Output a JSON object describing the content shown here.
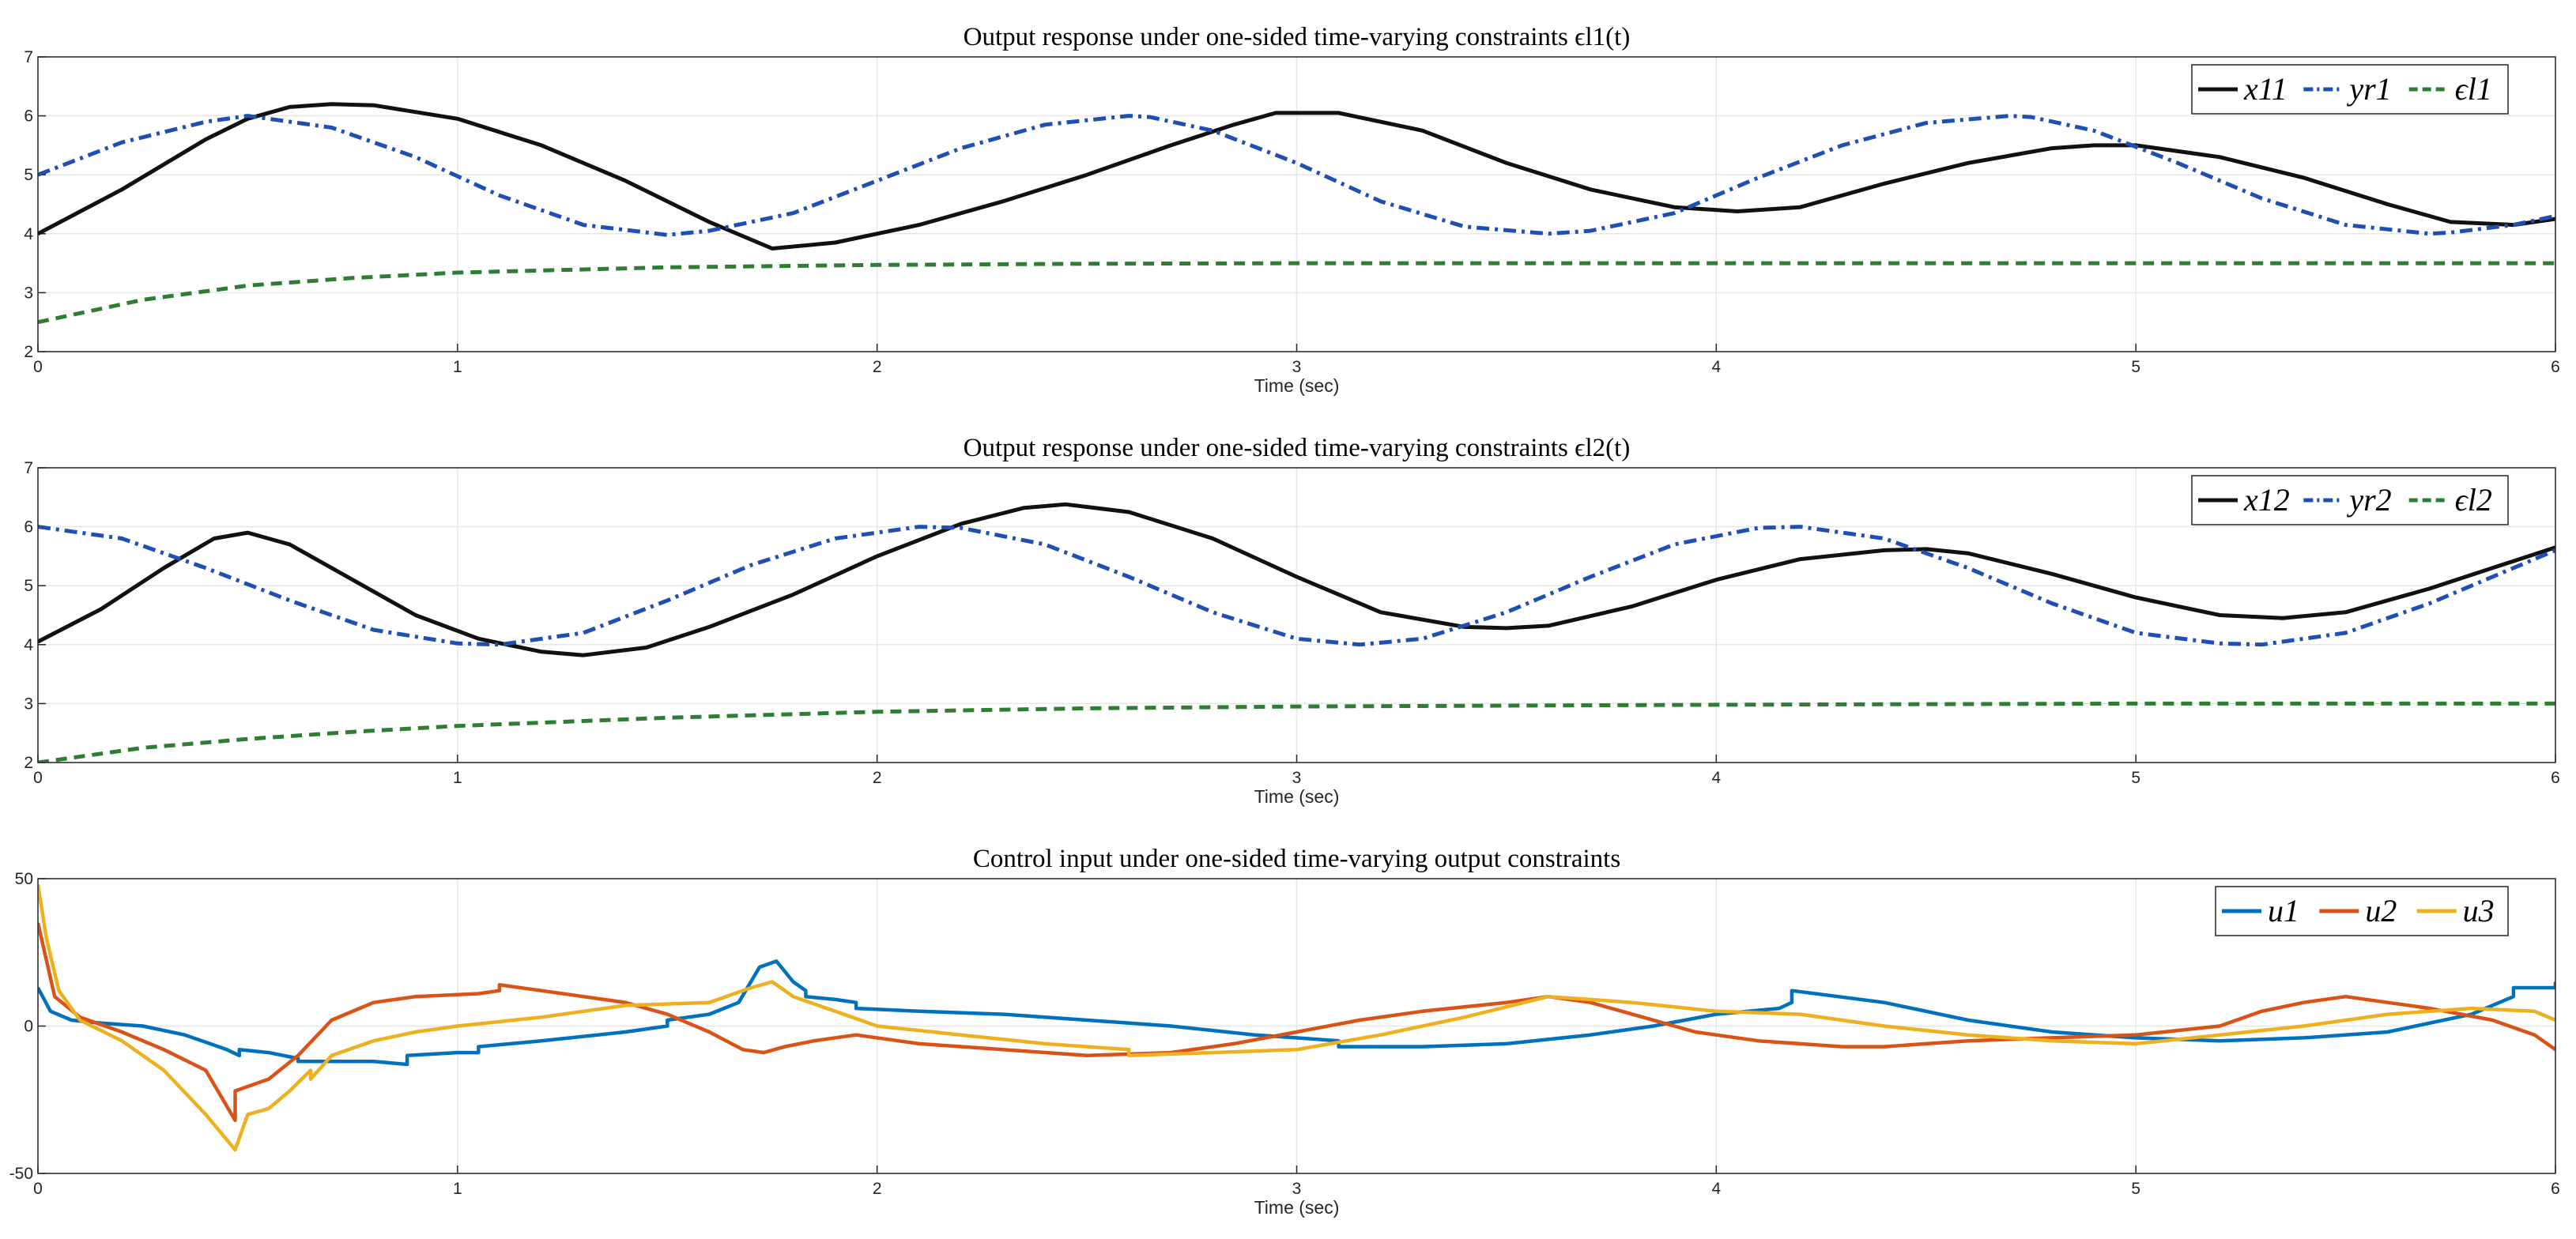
{
  "chart_data": [
    {
      "type": "line",
      "title": "Output response under one-sided time-varying constraints ϵl1(t)",
      "xlabel": "Time (sec)",
      "ylabel": "",
      "xlim": [
        0,
        6
      ],
      "ylim": [
        2,
        7
      ],
      "xticks": [
        "0",
        "1",
        "2",
        "3",
        "4",
        "5",
        "6"
      ],
      "yticks": [
        "2",
        "3",
        "4",
        "5",
        "6",
        "7"
      ],
      "grid": true,
      "legend_position": "top-right",
      "series": [
        {
          "name": "x11",
          "color": "#111111",
          "style": "solid",
          "x": [
            0,
            0.2,
            0.4,
            0.5,
            0.6,
            0.7,
            0.8,
            1.0,
            1.2,
            1.4,
            1.6,
            1.75,
            1.9,
            2.1,
            2.3,
            2.5,
            2.7,
            2.85,
            2.95,
            3.1,
            3.3,
            3.5,
            3.7,
            3.9,
            4.05,
            4.2,
            4.4,
            4.6,
            4.8,
            4.9,
            5.0,
            5.2,
            5.4,
            5.6,
            5.75,
            5.9,
            6.0
          ],
          "y": [
            4.0,
            4.75,
            5.6,
            5.95,
            6.15,
            6.2,
            6.18,
            5.95,
            5.5,
            4.9,
            4.2,
            3.75,
            3.85,
            4.15,
            4.55,
            5.0,
            5.5,
            5.85,
            6.05,
            6.05,
            5.75,
            5.2,
            4.75,
            4.45,
            4.38,
            4.45,
            4.85,
            5.2,
            5.45,
            5.5,
            5.5,
            5.3,
            4.95,
            4.5,
            4.2,
            4.15,
            4.25
          ]
        },
        {
          "name": "yr1",
          "color": "#1f4fb4",
          "style": "dashdot",
          "x": [
            0,
            0.2,
            0.4,
            0.5,
            0.7,
            0.9,
            1.1,
            1.3,
            1.5,
            1.6,
            1.8,
            2.0,
            2.2,
            2.4,
            2.6,
            2.65,
            2.8,
            3.0,
            3.2,
            3.4,
            3.6,
            3.7,
            3.9,
            4.1,
            4.3,
            4.5,
            4.7,
            4.75,
            4.9,
            5.1,
            5.3,
            5.5,
            5.7,
            5.75,
            5.9,
            6.0
          ],
          "y": [
            5.0,
            5.55,
            5.9,
            6.0,
            5.8,
            5.3,
            4.65,
            4.15,
            3.98,
            4.05,
            4.35,
            4.9,
            5.45,
            5.85,
            6.0,
            5.98,
            5.75,
            5.2,
            4.55,
            4.12,
            4.0,
            4.05,
            4.35,
            4.95,
            5.5,
            5.88,
            6.0,
            5.98,
            5.75,
            5.2,
            4.6,
            4.15,
            4.0,
            4.02,
            4.15,
            4.3
          ]
        },
        {
          "name": "ϵl1",
          "color": "#2e7d32",
          "style": "dashed",
          "x": [
            0,
            0.25,
            0.5,
            0.75,
            1.0,
            1.5,
            2.0,
            2.5,
            3.0,
            4.0,
            5.0,
            6.0
          ],
          "y": [
            2.5,
            2.88,
            3.12,
            3.25,
            3.34,
            3.43,
            3.47,
            3.49,
            3.5,
            3.5,
            3.5,
            3.5
          ]
        }
      ]
    },
    {
      "type": "line",
      "title": "Output response under one-sided time-varying constraints ϵl2(t)",
      "xlabel": "Time (sec)",
      "ylabel": "",
      "xlim": [
        0,
        6
      ],
      "ylim": [
        2,
        7
      ],
      "xticks": [
        "0",
        "1",
        "2",
        "3",
        "4",
        "5",
        "6"
      ],
      "yticks": [
        "2",
        "3",
        "4",
        "5",
        "6",
        "7"
      ],
      "grid": true,
      "legend_position": "top-right",
      "series": [
        {
          "name": "x12",
          "color": "#111111",
          "style": "solid",
          "x": [
            0,
            0.15,
            0.3,
            0.42,
            0.5,
            0.6,
            0.75,
            0.9,
            1.05,
            1.2,
            1.3,
            1.45,
            1.6,
            1.8,
            2.0,
            2.2,
            2.35,
            2.45,
            2.6,
            2.8,
            3.0,
            3.2,
            3.4,
            3.5,
            3.6,
            3.8,
            4.0,
            4.2,
            4.4,
            4.5,
            4.6,
            4.8,
            5.0,
            5.2,
            5.35,
            5.5,
            5.7,
            5.85,
            6.0
          ],
          "y": [
            4.05,
            4.6,
            5.3,
            5.8,
            5.9,
            5.7,
            5.1,
            4.5,
            4.1,
            3.88,
            3.82,
            3.95,
            4.3,
            4.85,
            5.5,
            6.05,
            6.32,
            6.38,
            6.25,
            5.8,
            5.15,
            4.55,
            4.3,
            4.28,
            4.32,
            4.65,
            5.1,
            5.45,
            5.6,
            5.62,
            5.55,
            5.2,
            4.8,
            4.5,
            4.45,
            4.55,
            4.95,
            5.3,
            5.65
          ]
        },
        {
          "name": "yr2",
          "color": "#1f4fb4",
          "style": "dashdot",
          "x": [
            0,
            0.2,
            0.4,
            0.6,
            0.8,
            1.0,
            1.1,
            1.3,
            1.5,
            1.7,
            1.9,
            2.1,
            2.2,
            2.4,
            2.6,
            2.8,
            3.0,
            3.15,
            3.3,
            3.5,
            3.7,
            3.9,
            4.1,
            4.2,
            4.4,
            4.6,
            4.8,
            5.0,
            5.2,
            5.3,
            5.5,
            5.7,
            5.9,
            6.0
          ],
          "y": [
            6.0,
            5.8,
            5.3,
            4.75,
            4.25,
            4.02,
            4.0,
            4.2,
            4.75,
            5.35,
            5.8,
            6.0,
            5.98,
            5.7,
            5.15,
            4.55,
            4.1,
            4.0,
            4.1,
            4.55,
            5.15,
            5.7,
            5.98,
            6.0,
            5.8,
            5.3,
            4.7,
            4.2,
            4.02,
            4.0,
            4.2,
            4.7,
            5.3,
            5.6
          ]
        },
        {
          "name": "ϵl2",
          "color": "#2e7d32",
          "style": "dashed",
          "x": [
            0,
            0.25,
            0.5,
            0.75,
            1.0,
            1.5,
            2.0,
            2.5,
            3.0,
            4.0,
            5.0,
            6.0
          ],
          "y": [
            2.0,
            2.25,
            2.4,
            2.52,
            2.62,
            2.76,
            2.86,
            2.92,
            2.95,
            2.98,
            3.0,
            3.0
          ]
        }
      ]
    },
    {
      "type": "line",
      "title": "Control input under one-sided time-varying output constraints",
      "xlabel": "Time (sec)",
      "ylabel": "",
      "xlim": [
        0,
        6
      ],
      "ylim": [
        -50,
        50
      ],
      "xticks": [
        "0",
        "1",
        "2",
        "3",
        "4",
        "5",
        "6"
      ],
      "yticks": [
        "-50",
        "0",
        "50"
      ],
      "grid": true,
      "legend_position": "top-right",
      "series": [
        {
          "name": "u1",
          "color": "#0072bd",
          "style": "solid",
          "x": [
            0,
            0.03,
            0.08,
            0.15,
            0.25,
            0.35,
            0.45,
            0.48,
            0.48,
            0.55,
            0.62,
            0.62,
            0.8,
            0.88,
            0.88,
            1.0,
            1.05,
            1.05,
            1.2,
            1.4,
            1.5,
            1.5,
            1.6,
            1.67,
            1.72,
            1.76,
            1.8,
            1.83,
            1.83,
            1.9,
            1.95,
            1.95,
            2.1,
            2.3,
            2.5,
            2.7,
            2.9,
            3.0,
            3.1,
            3.1,
            3.3,
            3.5,
            3.7,
            3.85,
            4.0,
            4.15,
            4.18,
            4.18,
            4.4,
            4.6,
            4.8,
            5.0,
            5.2,
            5.4,
            5.6,
            5.8,
            5.9,
            5.9,
            6.0,
            6.0
          ],
          "y": [
            13,
            5,
            2,
            1,
            0,
            -3,
            -8,
            -10,
            -8,
            -9,
            -11,
            -12,
            -12,
            -13,
            -10,
            -9,
            -9,
            -7,
            -5,
            -2,
            0,
            2,
            4,
            8,
            20,
            22,
            15,
            12,
            10,
            9,
            8,
            6,
            5,
            4,
            2,
            0,
            -3,
            -4,
            -5,
            -7,
            -7,
            -6,
            -3,
            0,
            4,
            6,
            8,
            12,
            8,
            2,
            -2,
            -4,
            -5,
            -4,
            -2,
            4,
            10,
            13,
            13,
            15
          ]
        },
        {
          "name": "u2",
          "color": "#d95319",
          "style": "solid",
          "x": [
            0,
            0.04,
            0.1,
            0.2,
            0.3,
            0.4,
            0.47,
            0.47,
            0.55,
            0.62,
            0.7,
            0.8,
            0.9,
            1.05,
            1.1,
            1.1,
            1.2,
            1.3,
            1.4,
            1.5,
            1.6,
            1.68,
            1.73,
            1.78,
            1.85,
            1.95,
            2.1,
            2.3,
            2.5,
            2.7,
            2.85,
            3.0,
            3.15,
            3.3,
            3.5,
            3.6,
            3.7,
            3.8,
            3.95,
            4.1,
            4.3,
            4.4,
            4.5,
            4.6,
            4.8,
            5.0,
            5.2,
            5.3,
            5.4,
            5.5,
            5.6,
            5.7,
            5.85,
            5.95,
            6.0
          ],
          "y": [
            35,
            10,
            3,
            -2,
            -8,
            -15,
            -32,
            -22,
            -18,
            -10,
            2,
            8,
            10,
            11,
            12,
            14,
            12,
            10,
            8,
            4,
            -2,
            -8,
            -9,
            -7,
            -5,
            -3,
            -6,
            -8,
            -10,
            -9,
            -6,
            -2,
            2,
            5,
            8,
            10,
            8,
            4,
            -2,
            -5,
            -7,
            -7,
            -6,
            -5,
            -4,
            -3,
            0,
            5,
            8,
            10,
            8,
            6,
            2,
            -3,
            -8
          ]
        },
        {
          "name": "u3",
          "color": "#edb120",
          "style": "solid",
          "x": [
            0,
            0.02,
            0.05,
            0.1,
            0.2,
            0.3,
            0.4,
            0.47,
            0.5,
            0.55,
            0.6,
            0.65,
            0.65,
            0.7,
            0.8,
            0.9,
            1.0,
            1.2,
            1.4,
            1.6,
            1.7,
            1.75,
            1.8,
            1.9,
            2.0,
            2.2,
            2.4,
            2.6,
            2.6,
            2.8,
            3.0,
            3.2,
            3.4,
            3.6,
            3.8,
            4.0,
            4.2,
            4.4,
            4.6,
            4.8,
            5.0,
            5.2,
            5.4,
            5.6,
            5.8,
            5.95,
            6.0
          ],
          "y": [
            48,
            30,
            12,
            2,
            -5,
            -15,
            -30,
            -42,
            -30,
            -28,
            -22,
            -15,
            -18,
            -10,
            -5,
            -2,
            0,
            3,
            7,
            8,
            13,
            15,
            10,
            5,
            0,
            -3,
            -6,
            -8,
            -10,
            -9,
            -8,
            -3,
            3,
            10,
            8,
            5,
            4,
            0,
            -3,
            -5,
            -6,
            -3,
            0,
            4,
            6,
            5,
            2
          ]
        }
      ]
    }
  ]
}
